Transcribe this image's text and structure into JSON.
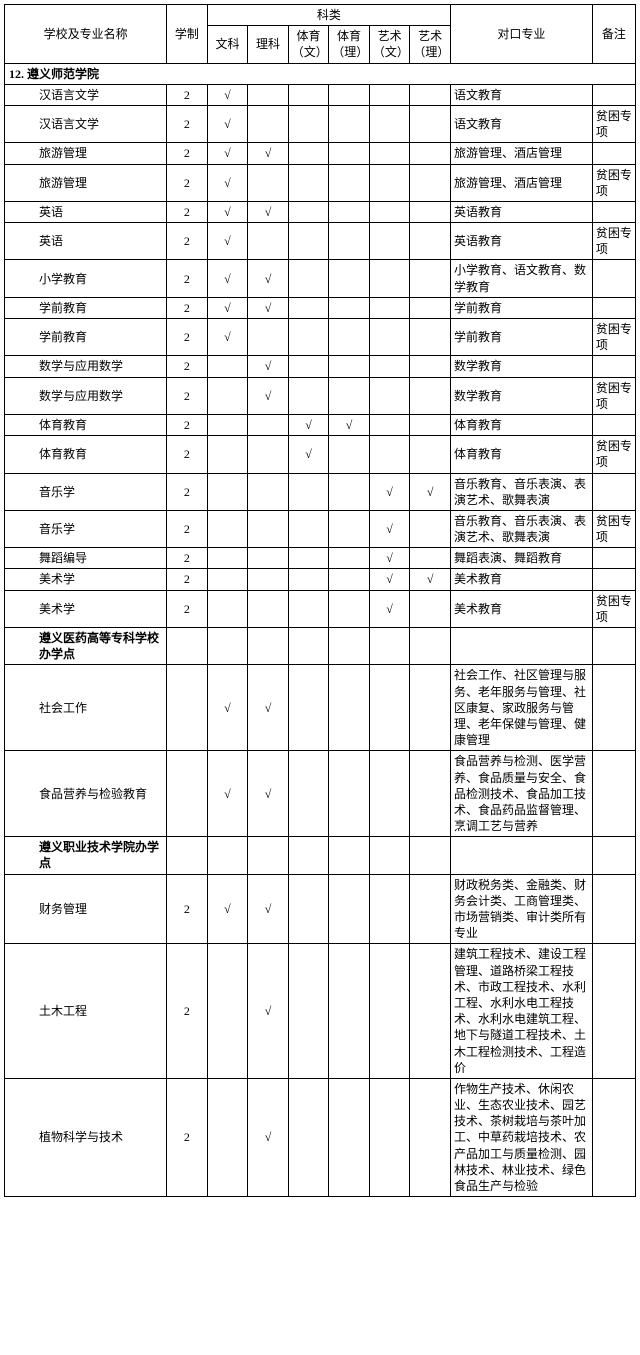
{
  "header": {
    "name": "学校及专业名称",
    "xuezhi": "学制",
    "kelei": "科类",
    "wenke": "文科",
    "like": "理科",
    "tiyu_wen": "体育（文）",
    "tiyu_li": "体育（理）",
    "yishu_wen": "艺术（文）",
    "yishu_li": "艺术（理）",
    "duikou": "对口专业",
    "beizhu": "备注"
  },
  "check": "√",
  "sec1": "12. 遵义师范学院",
  "sec2": "遵义医药高等专科学校办学点",
  "sec3": "遵义职业技术学院办学点",
  "r": [
    {
      "name": "汉语言文学",
      "xz": "2",
      "wk": "√",
      "lk": "",
      "tw": "",
      "tl": "",
      "yw": "",
      "yl": "",
      "dk": "语文教育",
      "bz": ""
    },
    {
      "name": "汉语言文学",
      "xz": "2",
      "wk": "√",
      "lk": "",
      "tw": "",
      "tl": "",
      "yw": "",
      "yl": "",
      "dk": "语文教育",
      "bz": "贫困专项"
    },
    {
      "name": "旅游管理",
      "xz": "2",
      "wk": "√",
      "lk": "√",
      "tw": "",
      "tl": "",
      "yw": "",
      "yl": "",
      "dk": "旅游管理、酒店管理",
      "bz": ""
    },
    {
      "name": "旅游管理",
      "xz": "2",
      "wk": "√",
      "lk": "",
      "tw": "",
      "tl": "",
      "yw": "",
      "yl": "",
      "dk": "旅游管理、酒店管理",
      "bz": "贫困专项"
    },
    {
      "name": "英语",
      "xz": "2",
      "wk": "√",
      "lk": "√",
      "tw": "",
      "tl": "",
      "yw": "",
      "yl": "",
      "dk": "英语教育",
      "bz": ""
    },
    {
      "name": "英语",
      "xz": "2",
      "wk": "√",
      "lk": "",
      "tw": "",
      "tl": "",
      "yw": "",
      "yl": "",
      "dk": "英语教育",
      "bz": "贫困专项"
    },
    {
      "name": "小学教育",
      "xz": "2",
      "wk": "√",
      "lk": "√",
      "tw": "",
      "tl": "",
      "yw": "",
      "yl": "",
      "dk": "小学教育、语文教育、数学教育",
      "bz": ""
    },
    {
      "name": "学前教育",
      "xz": "2",
      "wk": "√",
      "lk": "√",
      "tw": "",
      "tl": "",
      "yw": "",
      "yl": "",
      "dk": "学前教育",
      "bz": ""
    },
    {
      "name": "学前教育",
      "xz": "2",
      "wk": "√",
      "lk": "",
      "tw": "",
      "tl": "",
      "yw": "",
      "yl": "",
      "dk": "学前教育",
      "bz": "贫困专项"
    },
    {
      "name": "数学与应用数学",
      "xz": "2",
      "wk": "",
      "lk": "√",
      "tw": "",
      "tl": "",
      "yw": "",
      "yl": "",
      "dk": "数学教育",
      "bz": ""
    },
    {
      "name": "数学与应用数学",
      "xz": "2",
      "wk": "",
      "lk": "√",
      "tw": "",
      "tl": "",
      "yw": "",
      "yl": "",
      "dk": "数学教育",
      "bz": "贫困专项"
    },
    {
      "name": "体育教育",
      "xz": "2",
      "wk": "",
      "lk": "",
      "tw": "√",
      "tl": "√",
      "yw": "",
      "yl": "",
      "dk": "体育教育",
      "bz": ""
    },
    {
      "name": "体育教育",
      "xz": "2",
      "wk": "",
      "lk": "",
      "tw": "√",
      "tl": "",
      "yw": "",
      "yl": "",
      "dk": "体育教育",
      "bz": "贫困专项"
    },
    {
      "name": "音乐学",
      "xz": "2",
      "wk": "",
      "lk": "",
      "tw": "",
      "tl": "",
      "yw": "√",
      "yl": "√",
      "dk": "音乐教育、音乐表演、表演艺术、歌舞表演",
      "bz": ""
    },
    {
      "name": "音乐学",
      "xz": "2",
      "wk": "",
      "lk": "",
      "tw": "",
      "tl": "",
      "yw": "√",
      "yl": "",
      "dk": "音乐教育、音乐表演、表演艺术、歌舞表演",
      "bz": "贫困专项"
    },
    {
      "name": "舞蹈编导",
      "xz": "2",
      "wk": "",
      "lk": "",
      "tw": "",
      "tl": "",
      "yw": "√",
      "yl": "",
      "dk": "舞蹈表演、舞蹈教育",
      "bz": ""
    },
    {
      "name": "美术学",
      "xz": "2",
      "wk": "",
      "lk": "",
      "tw": "",
      "tl": "",
      "yw": "√",
      "yl": "√",
      "dk": "美术教育",
      "bz": ""
    },
    {
      "name": "美术学",
      "xz": "2",
      "wk": "",
      "lk": "",
      "tw": "",
      "tl": "",
      "yw": "√",
      "yl": "",
      "dk": "美术教育",
      "bz": "贫困专项"
    },
    {
      "name": "社会工作",
      "xz": "",
      "wk": "√",
      "lk": "√",
      "tw": "",
      "tl": "",
      "yw": "",
      "yl": "",
      "dk": "社会工作、社区管理与服务、老年服务与管理、社区康复、家政服务与管理、老年保健与管理、健康管理",
      "bz": ""
    },
    {
      "name": "食品营养与检验教育",
      "xz": "",
      "wk": "√",
      "lk": "√",
      "tw": "",
      "tl": "",
      "yw": "",
      "yl": "",
      "dk": "食品营养与检测、医学营养、食品质量与安全、食品检测技术、食品加工技术、食品药品监督管理、烹调工艺与营养",
      "bz": ""
    },
    {
      "name": "财务管理",
      "xz": "2",
      "wk": "√",
      "lk": "√",
      "tw": "",
      "tl": "",
      "yw": "",
      "yl": "",
      "dk": "财政税务类、金融类、财务会计类、工商管理类、市场营销类、审计类所有专业",
      "bz": ""
    },
    {
      "name": "土木工程",
      "xz": "2",
      "wk": "",
      "lk": "√",
      "tw": "",
      "tl": "",
      "yw": "",
      "yl": "",
      "dk": "建筑工程技术、建设工程管理、道路桥梁工程技术、市政工程技术、水利工程、水利水电工程技术、水利水电建筑工程、地下与隧道工程技术、土木工程检测技术、工程造价",
      "bz": ""
    },
    {
      "name": "植物科学与技术",
      "xz": "2",
      "wk": "",
      "lk": "√",
      "tw": "",
      "tl": "",
      "yw": "",
      "yl": "",
      "dk": "作物生产技术、休闲农业、生态农业技术、园艺技术、茶树栽培与茶叶加工、中草药栽培技术、农产品加工与质量检测、园林技术、林业技术、绿色食品生产与检验",
      "bz": ""
    }
  ]
}
